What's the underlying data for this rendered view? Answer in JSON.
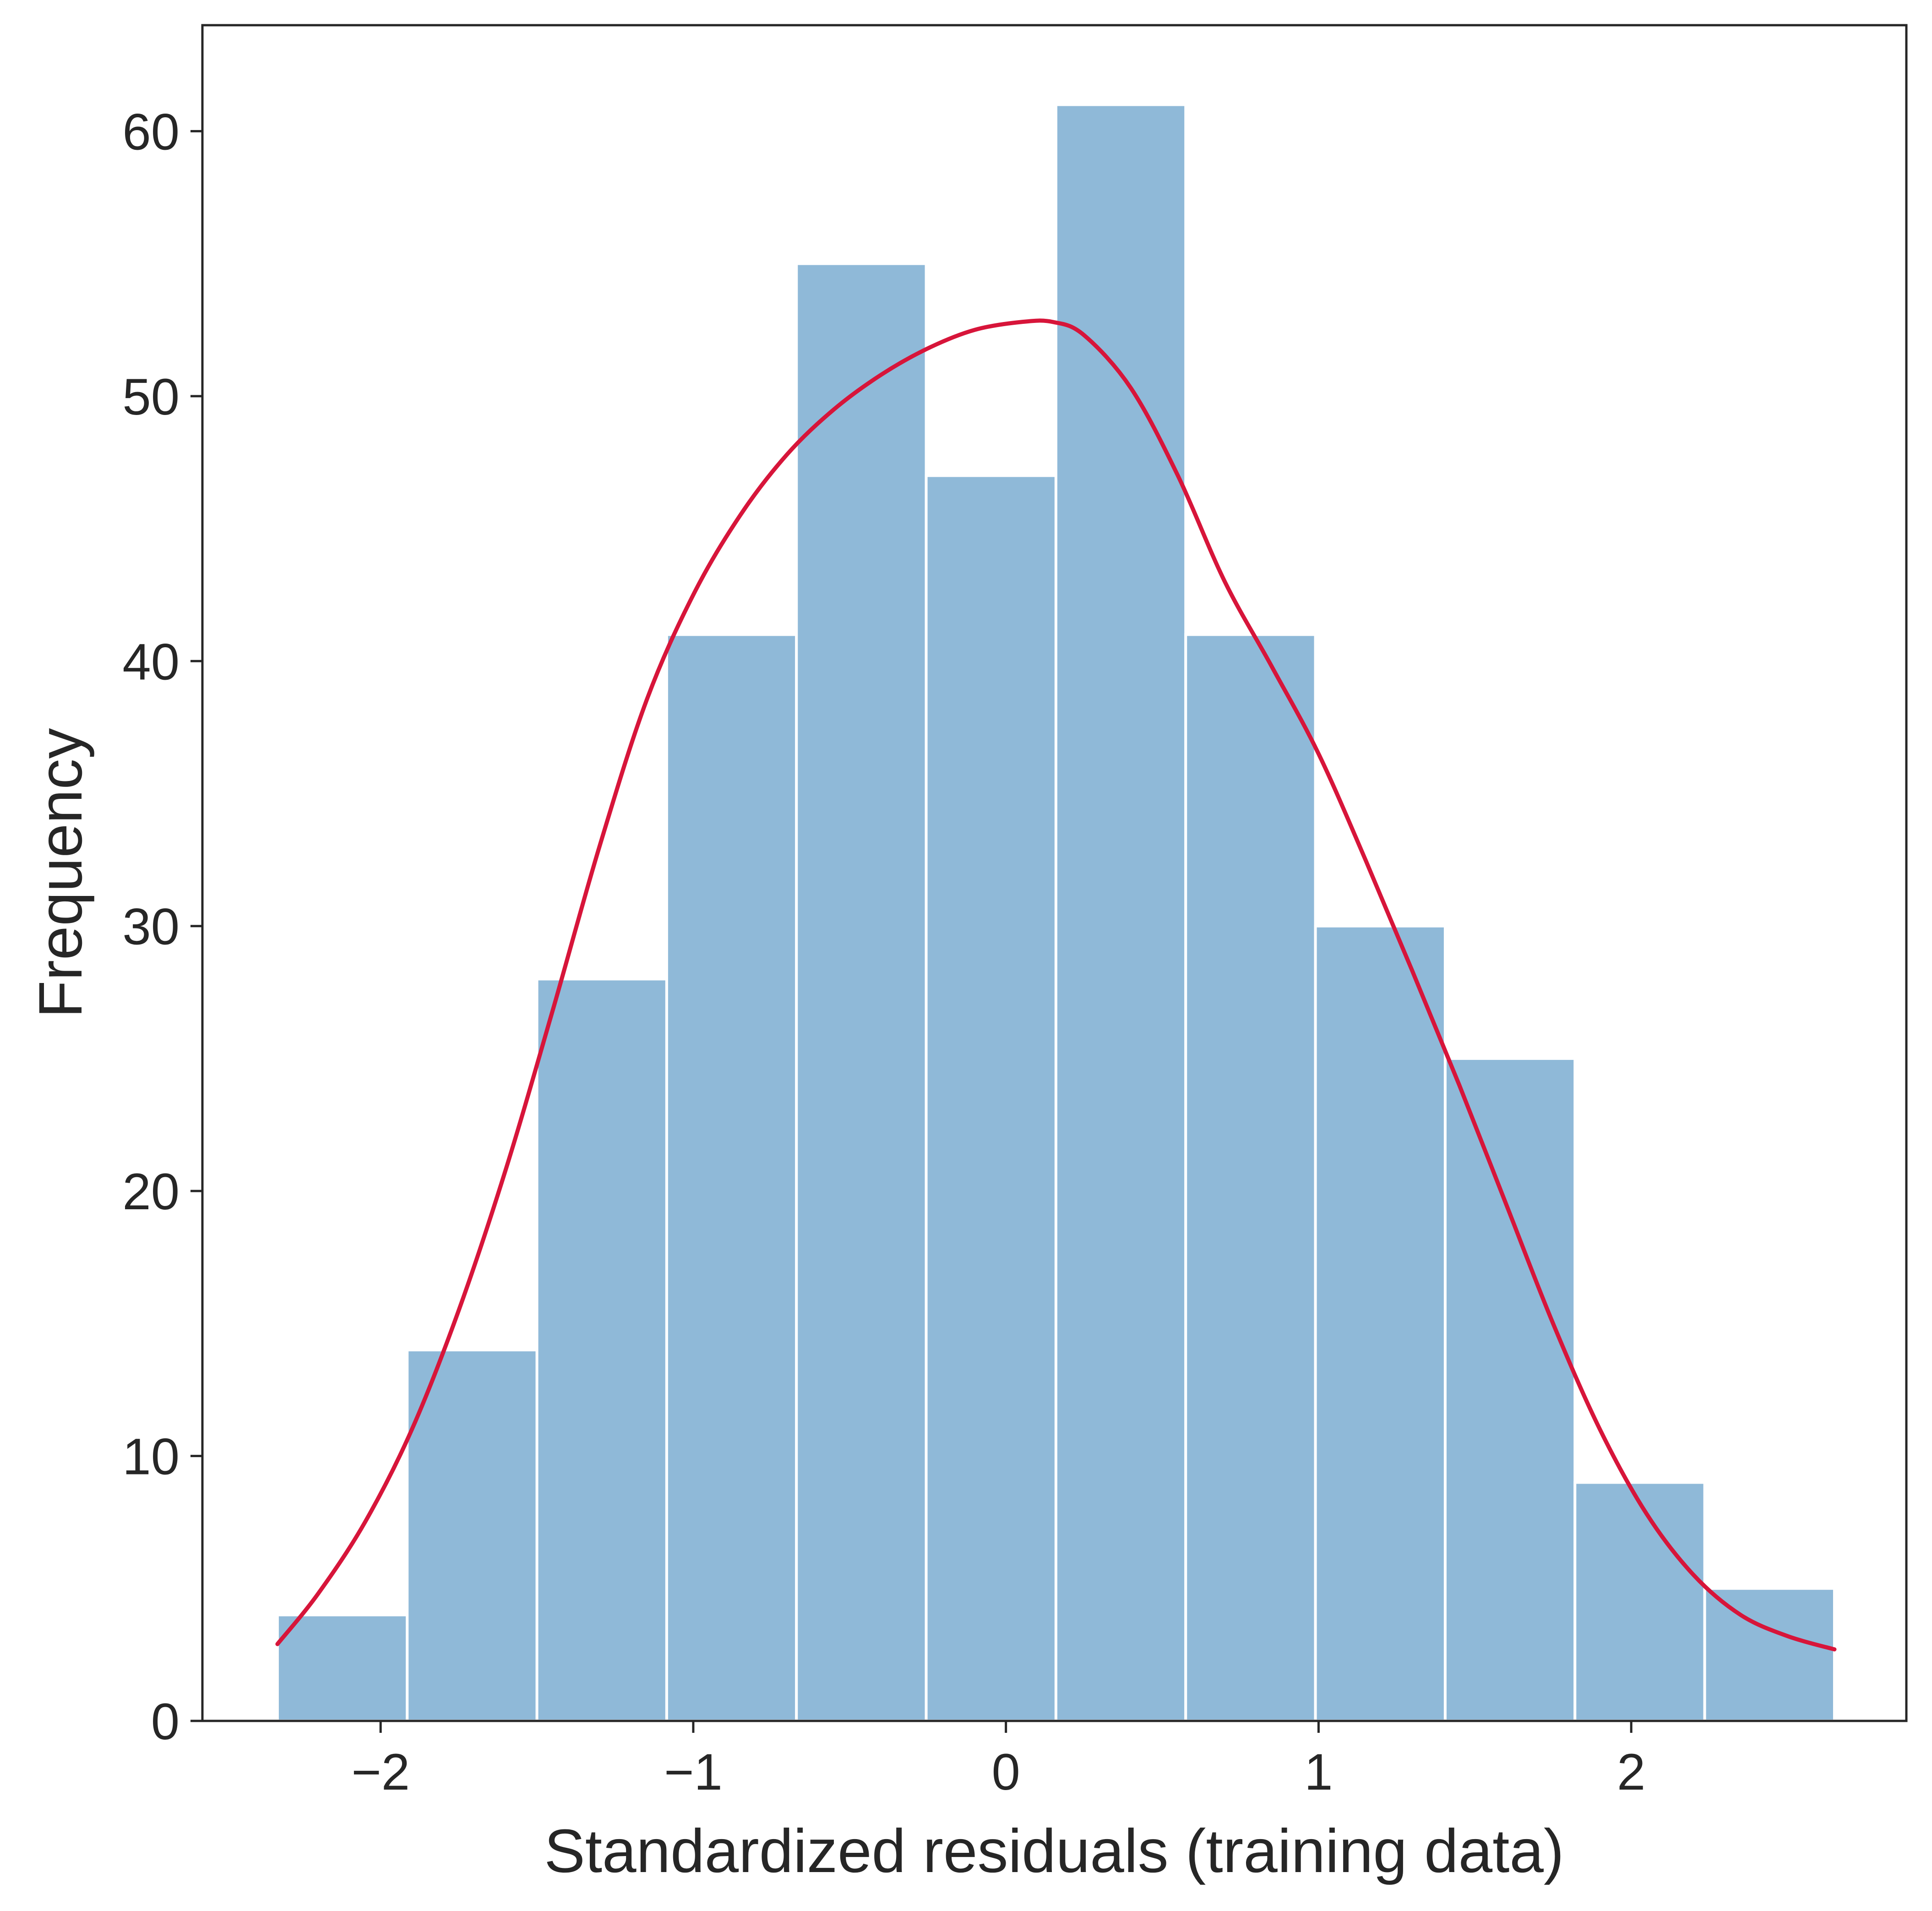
{
  "chart_data": {
    "type": "bar",
    "subtype": "histogram-with-kde",
    "title": "",
    "xlabel": "Standardized residuals (training data)",
    "ylabel": "Frequency",
    "xlim": [
      -2.57,
      2.88
    ],
    "ylim": [
      0,
      64
    ],
    "xticks": [
      -2,
      -1,
      0,
      1,
      2
    ],
    "xtick_labels": [
      "−2",
      "−1",
      "0",
      "1",
      "2"
    ],
    "yticks": [
      0,
      10,
      20,
      30,
      40,
      50,
      60
    ],
    "ytick_labels": [
      "0",
      "10",
      "20",
      "30",
      "40",
      "50",
      "60"
    ],
    "grid": false,
    "legend": "none",
    "bins": [
      {
        "x0": -2.33,
        "x1": -1.915,
        "count": 4
      },
      {
        "x0": -1.915,
        "x1": -1.5,
        "count": 14
      },
      {
        "x0": -1.5,
        "x1": -1.085,
        "count": 28
      },
      {
        "x0": -1.085,
        "x1": -0.67,
        "count": 41
      },
      {
        "x0": -0.67,
        "x1": -0.255,
        "count": 55
      },
      {
        "x0": -0.255,
        "x1": 0.16,
        "count": 47
      },
      {
        "x0": 0.16,
        "x1": 0.575,
        "count": 61
      },
      {
        "x0": 0.575,
        "x1": 0.99,
        "count": 41
      },
      {
        "x0": 0.99,
        "x1": 1.405,
        "count": 30
      },
      {
        "x0": 1.405,
        "x1": 1.82,
        "count": 25
      },
      {
        "x0": 1.82,
        "x1": 2.235,
        "count": 9
      },
      {
        "x0": 2.235,
        "x1": 2.65,
        "count": 5
      }
    ],
    "kde": {
      "x": [
        -2.33,
        -2.2,
        -2.05,
        -1.9,
        -1.75,
        -1.6,
        -1.45,
        -1.3,
        -1.15,
        -1.0,
        -0.85,
        -0.7,
        -0.55,
        -0.4,
        -0.25,
        -0.1,
        0.05,
        0.15,
        0.25,
        0.4,
        0.55,
        0.7,
        0.85,
        1.0,
        1.15,
        1.3,
        1.45,
        1.6,
        1.75,
        1.9,
        2.05,
        2.2,
        2.35,
        2.5,
        2.65
      ],
      "y": [
        2.9,
        4.8,
        7.5,
        11.0,
        15.5,
        20.8,
        26.8,
        33.0,
        38.5,
        42.5,
        45.5,
        47.8,
        49.5,
        50.8,
        51.8,
        52.5,
        52.8,
        52.8,
        52.3,
        50.3,
        47.0,
        43.0,
        39.8,
        36.5,
        32.5,
        28.3,
        24.0,
        19.5,
        15.0,
        11.0,
        7.8,
        5.5,
        4.0,
        3.2,
        2.7
      ],
      "color": "#d7153a"
    },
    "bar_color": "#8fb9d8",
    "bar_edge_color": "#ffffff"
  }
}
